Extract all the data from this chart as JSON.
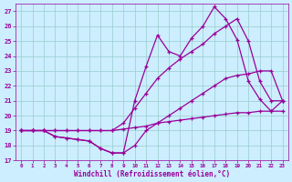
{
  "xlabel": "Windchill (Refroidissement éolien,°C)",
  "xlim": [
    -0.5,
    23.5
  ],
  "ylim": [
    17,
    27.5
  ],
  "yticks": [
    17,
    18,
    19,
    20,
    21,
    22,
    23,
    24,
    25,
    26,
    27
  ],
  "xticks": [
    0,
    1,
    2,
    3,
    4,
    5,
    6,
    7,
    8,
    9,
    10,
    11,
    12,
    13,
    14,
    15,
    16,
    17,
    18,
    19,
    20,
    21,
    22,
    23
  ],
  "bg_color": "#cceeff",
  "line_color": "#990099",
  "grid_color": "#99cccc",
  "series": [
    {
      "x": [
        0,
        1,
        2,
        3,
        4,
        5,
        6,
        7,
        8,
        9,
        10,
        11,
        12,
        13,
        14,
        15,
        16,
        17,
        18,
        19,
        20,
        21,
        22,
        23
      ],
      "y": [
        19,
        19,
        19,
        19,
        19,
        19,
        19,
        19,
        19,
        19.1,
        19.2,
        19.3,
        19.5,
        19.6,
        19.7,
        19.8,
        19.9,
        20.0,
        20.1,
        20.2,
        20.2,
        20.3,
        20.3,
        20.3
      ]
    },
    {
      "x": [
        0,
        1,
        2,
        3,
        4,
        5,
        6,
        7,
        8,
        9,
        10,
        11,
        12,
        13,
        14,
        15,
        16,
        17,
        18,
        19,
        20,
        21,
        22,
        23
      ],
      "y": [
        19,
        19,
        19,
        18.6,
        18.5,
        18.4,
        18.3,
        17.8,
        17.5,
        17.5,
        18.0,
        19.0,
        19.5,
        20.0,
        20.5,
        21.0,
        21.5,
        22.0,
        22.5,
        22.7,
        22.8,
        23.0,
        23.0,
        21.0
      ]
    },
    {
      "x": [
        0,
        1,
        2,
        3,
        4,
        5,
        6,
        7,
        8,
        9,
        10,
        11,
        12,
        13,
        14,
        15,
        16,
        17,
        18,
        19,
        20,
        21,
        22,
        23
      ],
      "y": [
        19,
        19,
        19,
        19,
        19,
        19,
        19,
        19,
        19,
        19.5,
        20.5,
        21.5,
        22.5,
        23.2,
        23.8,
        24.3,
        24.8,
        25.5,
        26.0,
        26.5,
        25.0,
        22.3,
        21.0,
        21.0
      ]
    },
    {
      "x": [
        0,
        1,
        2,
        3,
        4,
        5,
        6,
        7,
        8,
        9,
        10,
        11,
        12,
        13,
        14,
        15,
        16,
        17,
        18,
        19,
        20,
        21,
        22,
        23
      ],
      "y": [
        19,
        19,
        19,
        18.6,
        18.5,
        18.4,
        18.3,
        17.8,
        17.5,
        17.5,
        21.0,
        23.3,
        25.4,
        24.3,
        24.0,
        25.2,
        26.0,
        27.3,
        26.5,
        25.1,
        22.3,
        21.1,
        20.3,
        21.0
      ]
    }
  ]
}
